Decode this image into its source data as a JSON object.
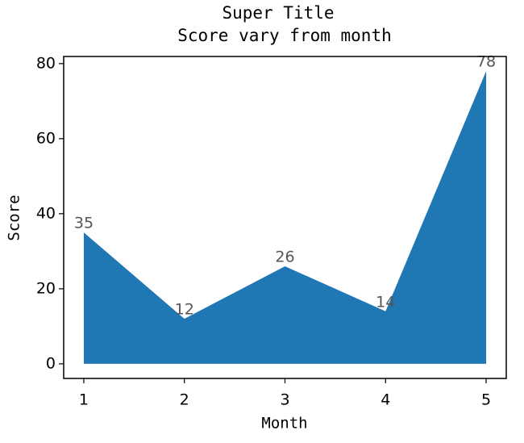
{
  "chart_data": {
    "type": "area",
    "title": "Super Title",
    "subtitle": "Score vary from month",
    "x_label": "Month",
    "y_label": "Score",
    "x": [
      1,
      2,
      3,
      4,
      5
    ],
    "values": [
      35,
      12,
      26,
      14,
      78
    ],
    "color": "#1f77b4",
    "xlim": [
      0.8,
      5.2
    ],
    "ylim": [
      -3.9,
      81.9
    ],
    "xticks": [
      1,
      2,
      3,
      4,
      5
    ],
    "yticks": [
      0,
      20,
      40,
      60,
      80
    ],
    "grid": false
  }
}
